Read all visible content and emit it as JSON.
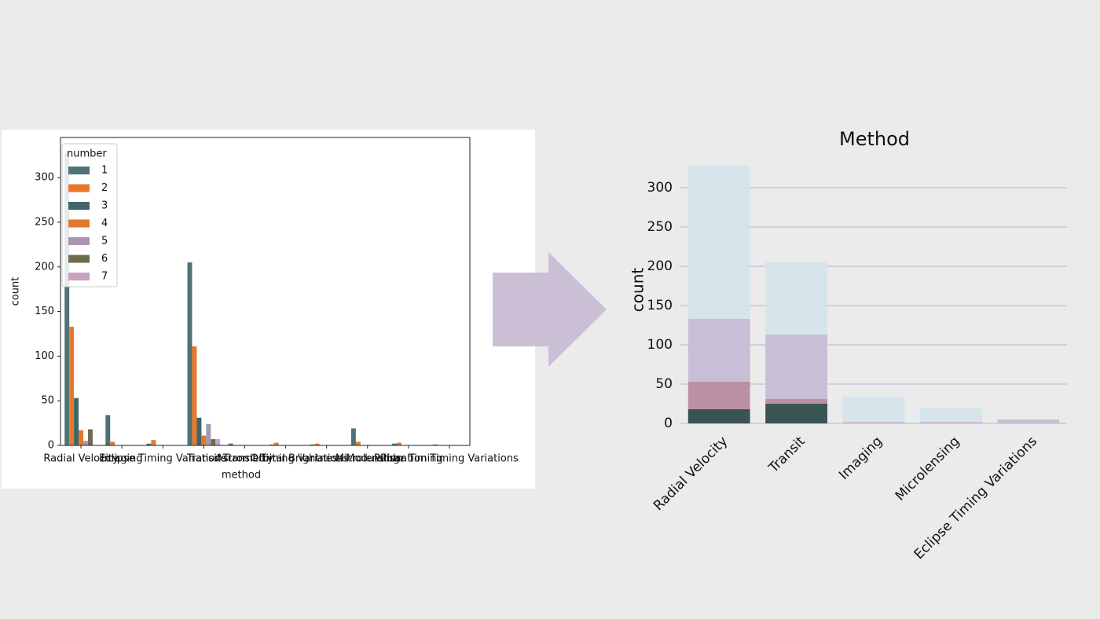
{
  "chart_data": [
    {
      "type": "bar",
      "barmode": "grouped",
      "xlabel": "method",
      "ylabel": "count",
      "categories": [
        "Radial Velocity",
        "Imaging",
        "Eclipse Timing Variations",
        "Transit",
        "Astrometry",
        "Transit Timing Variations",
        "Orbital Brightness Modulation",
        "Microlensing",
        "Pulsar Timing",
        "Pulsation Timing Variations"
      ],
      "legend_title": "number",
      "legend": "upper left",
      "series": [
        {
          "name": "1",
          "color": "#4f7374",
          "values": [
            328,
            34,
            2,
            205,
            2,
            1,
            1,
            19,
            2,
            1
          ]
        },
        {
          "name": "2",
          "color": "#e8792c",
          "values": [
            133,
            4,
            6,
            111,
            null,
            3,
            2,
            4,
            3,
            null
          ]
        },
        {
          "name": "3",
          "color": "#3f6568",
          "values": [
            53,
            null,
            null,
            31,
            null,
            null,
            null,
            null,
            null,
            null
          ]
        },
        {
          "name": "4",
          "color": "#e0782e",
          "values": [
            17,
            null,
            null,
            11,
            null,
            null,
            null,
            null,
            null,
            null
          ]
        },
        {
          "name": "5",
          "color": "#a995b2",
          "values": [
            5,
            null,
            null,
            24,
            null,
            null,
            null,
            null,
            null,
            null
          ]
        },
        {
          "name": "6",
          "color": "#6f6b4e",
          "values": [
            18,
            null,
            null,
            7,
            null,
            null,
            null,
            null,
            null,
            null
          ]
        },
        {
          "name": "7",
          "color": "#caa1c3",
          "values": [
            null,
            null,
            null,
            7,
            null,
            null,
            null,
            null,
            null,
            null
          ]
        }
      ],
      "ylim": [
        0,
        345
      ],
      "yticks": [
        0,
        50,
        100,
        150,
        200,
        250,
        300
      ],
      "grid": false
    },
    {
      "type": "bar",
      "barmode": "overlay",
      "title": "Method",
      "ylabel": "count",
      "categories": [
        "Radial Velocity",
        "Transit",
        "Imaging",
        "Microlensing",
        "Eclipse Timing Variations"
      ],
      "series": [
        {
          "color": "#d3e4ea",
          "values": [
            328,
            205,
            34,
            19,
            null
          ]
        },
        {
          "color": "#c6bcd4",
          "values": [
            133,
            113,
            2,
            2,
            5
          ]
        },
        {
          "color": "#bb8c9e",
          "values": [
            53,
            31,
            null,
            null,
            null
          ]
        },
        {
          "color": "#2e4f4c",
          "values": [
            18,
            25,
            null,
            null,
            null
          ]
        }
      ],
      "ylim": [
        0,
        330
      ],
      "yticks": [
        0,
        50,
        100,
        150,
        200,
        250,
        300
      ],
      "grid": true
    }
  ]
}
